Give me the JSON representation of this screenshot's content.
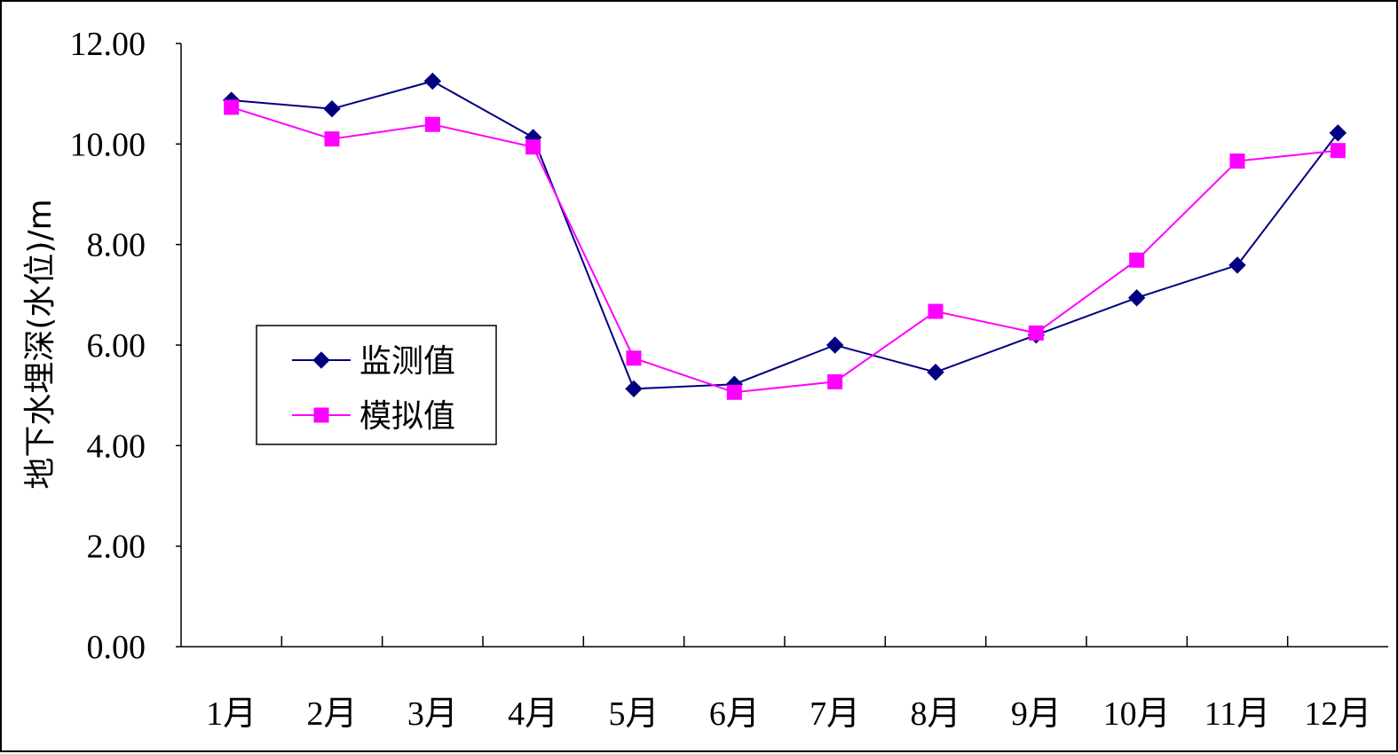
{
  "chart_data": {
    "type": "line",
    "categories": [
      "1月",
      "2月",
      "3月",
      "4月",
      "5月",
      "6月",
      "7月",
      "8月",
      "9月",
      "10月",
      "11月",
      "12月"
    ],
    "series": [
      {
        "name": "监测值",
        "color": "#000080",
        "marker": "diamond",
        "values": [
          10.87,
          10.7,
          11.25,
          10.13,
          5.13,
          5.22,
          6.0,
          5.46,
          6.2,
          6.94,
          7.59,
          10.22
        ]
      },
      {
        "name": "模拟值",
        "color": "#FF00FF",
        "marker": "square",
        "values": [
          10.73,
          10.1,
          10.39,
          9.94,
          5.74,
          5.06,
          5.27,
          6.67,
          6.24,
          7.69,
          9.66,
          9.87
        ]
      }
    ],
    "ylabel": "地下水埋深(水位)/m",
    "ylim": [
      0,
      12
    ],
    "ytick_values": [
      0,
      2,
      4,
      6,
      8,
      10,
      12
    ],
    "ytick_labels": [
      "0.00",
      "2.00",
      "4.00",
      "6.00",
      "8.00",
      "10.00",
      "12.00"
    ],
    "grid": false,
    "legend_position": "middle-left"
  }
}
